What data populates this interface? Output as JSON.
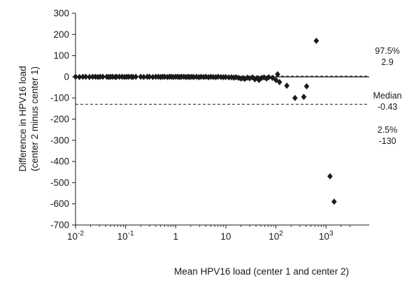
{
  "chart_data": {
    "type": "scatter",
    "title": "",
    "xlabel": "Mean HPV16 load (center 1 and center 2)",
    "ylabel_lines": [
      "Difference in HPV16 load",
      "(center 2 minus center 1)"
    ],
    "x_scale": "log10",
    "xlim": [
      0.01,
      3000
    ],
    "x_ticks": [
      {
        "value": 0.01,
        "base": "10",
        "exp": "-2"
      },
      {
        "value": 0.1,
        "base": "10",
        "exp": "-1"
      },
      {
        "value": 1,
        "base": "1",
        "exp": ""
      },
      {
        "value": 10,
        "base": "10",
        "exp": ""
      },
      {
        "value": 100,
        "base": "10",
        "exp": "2"
      },
      {
        "value": 1000,
        "base": "10",
        "exp": "3"
      }
    ],
    "ylim": [
      -700,
      300
    ],
    "y_ticks": [
      300,
      200,
      100,
      0,
      -100,
      -200,
      -300,
      -400,
      -500,
      -600,
      -700
    ],
    "y_tick_labels": [
      "300",
      "200",
      "100",
      "0",
      "-100",
      "-200",
      "-300",
      "-400",
      "-500",
      "-600",
      "-700"
    ],
    "grid": false,
    "reference_lines": [
      {
        "y": 2.9,
        "style": "dashed",
        "label_lines": [
          "97.5%",
          "2.9"
        ]
      },
      {
        "y": -0.43,
        "style": "solid",
        "label_lines": [
          "Median",
          "-0.43"
        ]
      },
      {
        "y": -130,
        "style": "dashed",
        "label_lines": [
          "2.5%",
          "-130"
        ]
      }
    ],
    "points": [
      {
        "x": 0.01,
        "y": 0
      },
      {
        "x": 0.012,
        "y": -1
      },
      {
        "x": 0.014,
        "y": 0
      },
      {
        "x": 0.016,
        "y": 0
      },
      {
        "x": 0.019,
        "y": -1
      },
      {
        "x": 0.022,
        "y": 0
      },
      {
        "x": 0.025,
        "y": 0
      },
      {
        "x": 0.028,
        "y": -1
      },
      {
        "x": 0.031,
        "y": 0
      },
      {
        "x": 0.035,
        "y": 0
      },
      {
        "x": 0.042,
        "y": 0
      },
      {
        "x": 0.046,
        "y": -1
      },
      {
        "x": 0.05,
        "y": 0
      },
      {
        "x": 0.055,
        "y": 0
      },
      {
        "x": 0.062,
        "y": -1
      },
      {
        "x": 0.066,
        "y": 0
      },
      {
        "x": 0.075,
        "y": 0
      },
      {
        "x": 0.085,
        "y": 0
      },
      {
        "x": 0.095,
        "y": -1
      },
      {
        "x": 0.105,
        "y": 0
      },
      {
        "x": 0.115,
        "y": 0
      },
      {
        "x": 0.13,
        "y": 0
      },
      {
        "x": 0.14,
        "y": -1
      },
      {
        "x": 0.16,
        "y": 0
      },
      {
        "x": 0.2,
        "y": 0
      },
      {
        "x": 0.23,
        "y": -1
      },
      {
        "x": 0.27,
        "y": 0
      },
      {
        "x": 0.3,
        "y": 0
      },
      {
        "x": 0.35,
        "y": -1
      },
      {
        "x": 0.4,
        "y": 0
      },
      {
        "x": 0.45,
        "y": 0
      },
      {
        "x": 0.5,
        "y": -1
      },
      {
        "x": 0.55,
        "y": 0
      },
      {
        "x": 0.6,
        "y": 0
      },
      {
        "x": 0.68,
        "y": -1
      },
      {
        "x": 0.75,
        "y": 0
      },
      {
        "x": 0.82,
        "y": 0
      },
      {
        "x": 0.9,
        "y": -1
      },
      {
        "x": 1.0,
        "y": 0
      },
      {
        "x": 1.1,
        "y": 0
      },
      {
        "x": 1.2,
        "y": -1
      },
      {
        "x": 1.3,
        "y": 0
      },
      {
        "x": 1.45,
        "y": 0
      },
      {
        "x": 1.6,
        "y": -1
      },
      {
        "x": 1.75,
        "y": 0
      },
      {
        "x": 1.9,
        "y": -1
      },
      {
        "x": 2.1,
        "y": 0
      },
      {
        "x": 2.3,
        "y": -1
      },
      {
        "x": 2.6,
        "y": 0
      },
      {
        "x": 2.9,
        "y": -2
      },
      {
        "x": 3.2,
        "y": 0
      },
      {
        "x": 3.6,
        "y": -1
      },
      {
        "x": 4.0,
        "y": 0
      },
      {
        "x": 4.5,
        "y": -2
      },
      {
        "x": 5.0,
        "y": 0
      },
      {
        "x": 5.6,
        "y": -1
      },
      {
        "x": 6.3,
        "y": -2
      },
      {
        "x": 7.0,
        "y": 0
      },
      {
        "x": 8.0,
        "y": -1
      },
      {
        "x": 9.0,
        "y": -2
      },
      {
        "x": 10,
        "y": -1
      },
      {
        "x": 11.5,
        "y": -3
      },
      {
        "x": 13,
        "y": -2
      },
      {
        "x": 14.5,
        "y": -4
      },
      {
        "x": 16,
        "y": -2
      },
      {
        "x": 18,
        "y": -5
      },
      {
        "x": 20,
        "y": -8
      },
      {
        "x": 22,
        "y": -6
      },
      {
        "x": 24,
        "y": -10
      },
      {
        "x": 27,
        "y": -4
      },
      {
        "x": 30,
        "y": -7
      },
      {
        "x": 34,
        "y": -3
      },
      {
        "x": 38,
        "y": -12
      },
      {
        "x": 42,
        "y": -6
      },
      {
        "x": 46,
        "y": -15
      },
      {
        "x": 52,
        "y": -5
      },
      {
        "x": 58,
        "y": -3
      },
      {
        "x": 65,
        "y": -8
      },
      {
        "x": 72,
        "y": -2
      },
      {
        "x": 85,
        "y": -5
      },
      {
        "x": 100,
        "y": -15
      },
      {
        "x": 108,
        "y": 12
      },
      {
        "x": 118,
        "y": -25
      },
      {
        "x": 165,
        "y": -42
      },
      {
        "x": 240,
        "y": -100
      },
      {
        "x": 360,
        "y": -95
      },
      {
        "x": 410,
        "y": -45
      },
      {
        "x": 640,
        "y": 170
      },
      {
        "x": 1200,
        "y": -470
      },
      {
        "x": 1450,
        "y": -590
      }
    ]
  }
}
